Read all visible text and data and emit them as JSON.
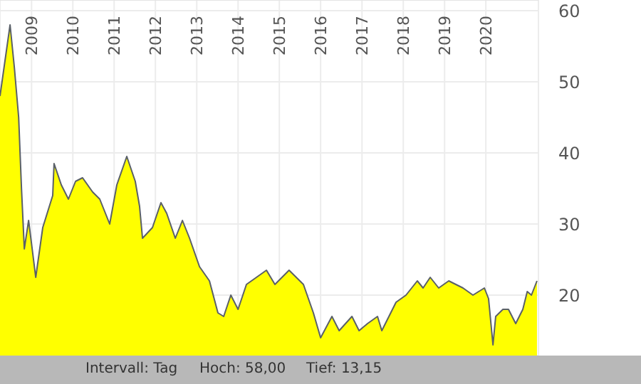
{
  "chart_data": {
    "type": "area",
    "color": "#ffff00",
    "x": [
      "2008-03-28",
      "2008-06-25",
      "2008-08-02",
      "2008-09-09",
      "2008-10-04",
      "2008-10-29",
      "2008-12-06",
      "2009-02-07",
      "2009-04-10",
      "2009-07-07",
      "2009-07-19",
      "2009-09-21",
      "2009-11-23",
      "2010-01-25",
      "2010-03-28",
      "2010-06-25",
      "2010-08-27",
      "2010-11-23",
      "2011-01-25",
      "2011-04-23",
      "2011-07-07",
      "2011-08-14",
      "2011-09-09",
      "2011-12-06",
      "2012-02-19",
      "2012-04-10",
      "2012-06-25",
      "2012-08-27",
      "2012-10-29",
      "2013-01-25",
      "2013-04-23",
      "2013-07-07",
      "2013-08-27",
      "2013-10-29",
      "2014-01-01",
      "2014-03-16",
      "2014-09-09",
      "2014-11-23",
      "2015-03-28",
      "2015-08-02",
      "2015-10-29",
      "2016-01-01",
      "2016-04-10",
      "2016-06-13",
      "2016-10-04",
      "2016-12-06",
      "2017-02-19",
      "2017-05-18",
      "2017-06-25",
      "2017-10-29",
      "2018-01-25",
      "2018-05-05",
      "2018-06-25",
      "2018-08-27",
      "2018-11-10",
      "2019-02-07",
      "2019-06-13",
      "2019-09-09",
      "2019-12-19",
      "2020-01-25",
      "2020-03-04",
      "2020-03-28",
      "2020-05-31",
      "2020-07-19",
      "2020-09-21",
      "2020-11-23",
      "2021-01-01",
      "2021-02-07",
      "2021-03-28"
    ],
    "values": [
      48,
      58,
      52,
      45,
      35,
      26.5,
      30.5,
      22.5,
      29.5,
      34,
      38.5,
      35.5,
      33.5,
      36,
      36.5,
      34.5,
      33.5,
      30,
      35.5,
      39.5,
      36,
      32.5,
      28,
      29.5,
      33,
      31.5,
      28,
      30.5,
      28,
      24,
      22,
      17.5,
      17,
      20,
      18,
      21.5,
      23.5,
      21.5,
      23.5,
      21.5,
      17.5,
      14,
      17,
      15,
      17,
      15,
      16,
      17,
      15,
      19,
      20,
      22,
      21,
      22.5,
      21,
      22,
      21,
      20,
      21,
      19.5,
      13,
      17,
      18,
      18,
      16,
      18,
      20.5,
      20,
      22
    ],
    "xlim": [
      "2008-03-28",
      "2021-04-10"
    ],
    "xticks": [
      "2009",
      "2010",
      "2011",
      "2012",
      "2013",
      "2014",
      "2015",
      "2016",
      "2017",
      "2018",
      "2019",
      "2020"
    ],
    "ylim": [
      11.5,
      61.5
    ],
    "yticks": [
      20,
      30,
      40,
      50,
      60
    ],
    "grid": true,
    "annotations": [
      "Intervall: Tag",
      "Hoch: 58,00",
      "Tief: 13,15"
    ]
  }
}
